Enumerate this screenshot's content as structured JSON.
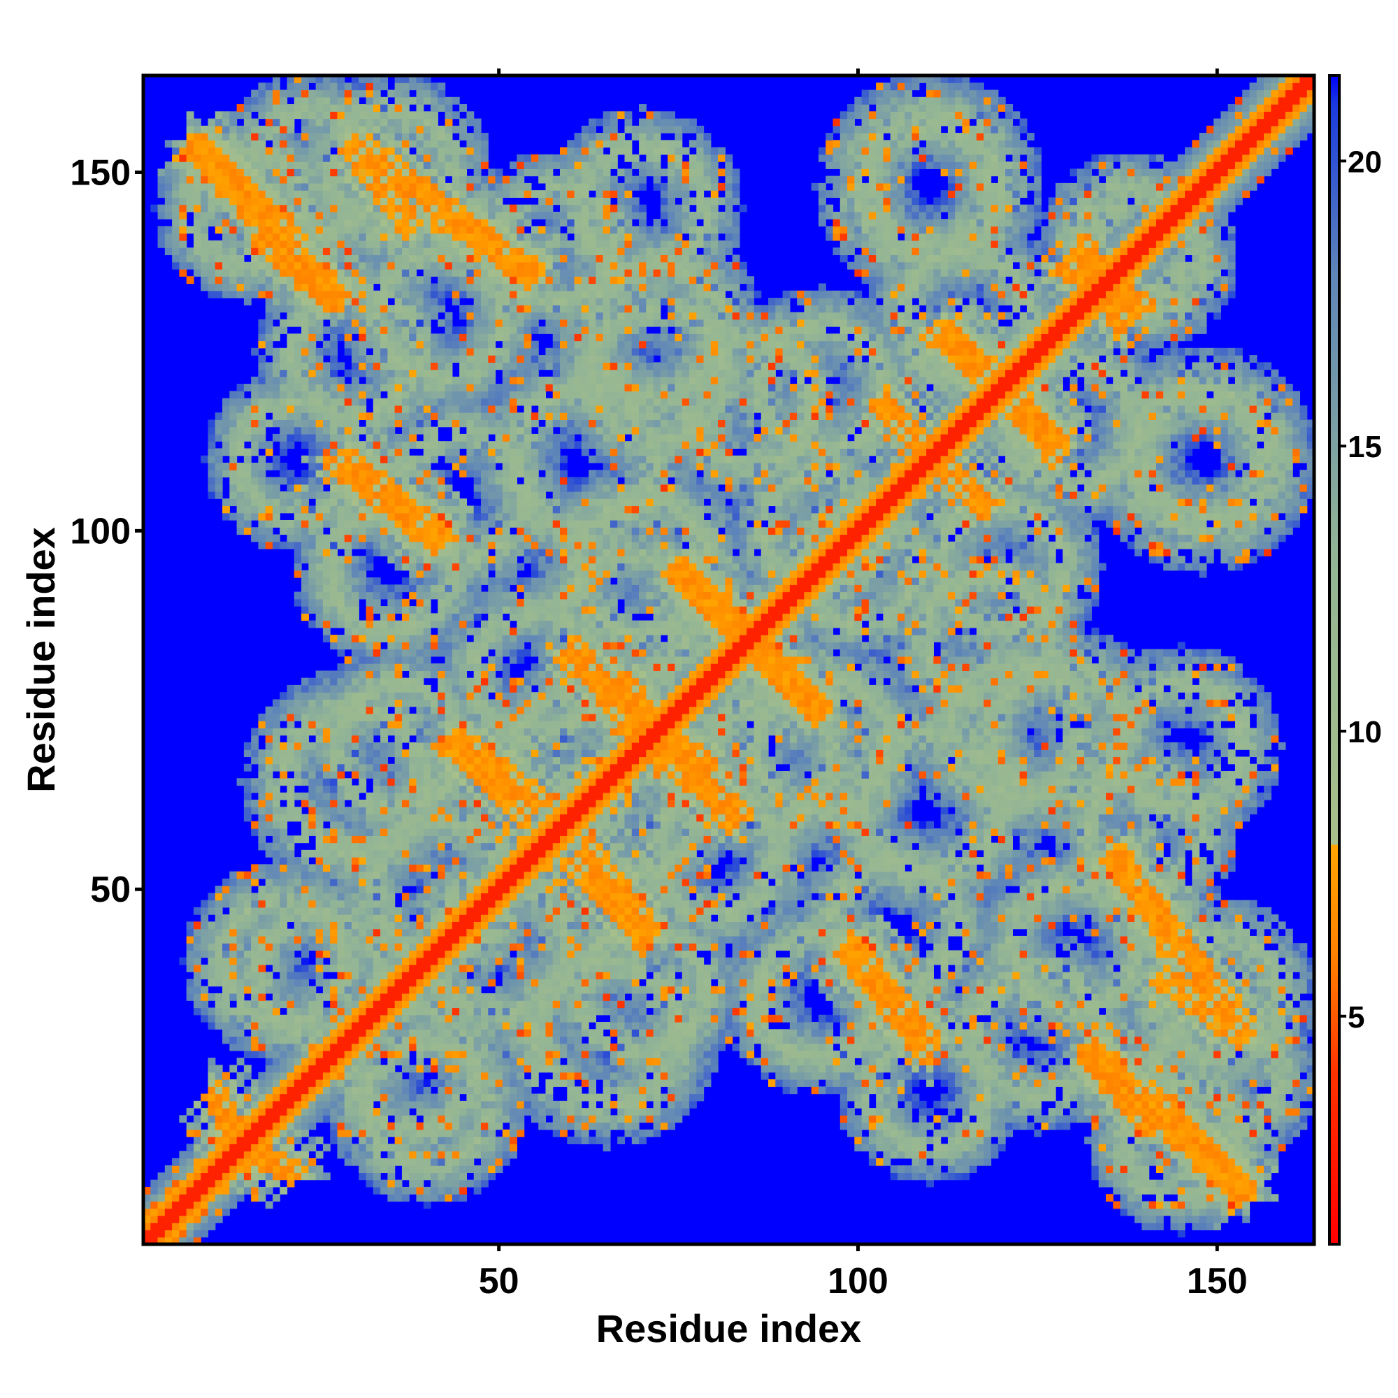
{
  "chart_data": {
    "type": "heatmap",
    "title": "",
    "xlabel": "Residue index",
    "ylabel": "Residue index",
    "xlim": [
      1,
      163
    ],
    "ylim": [
      1,
      163
    ],
    "x_ticks": [
      50,
      100,
      150
    ],
    "y_ticks": [
      50,
      100,
      150
    ],
    "x_tick_labels": [
      "50",
      "100",
      "150"
    ],
    "y_tick_labels": [
      "50",
      "100",
      "150"
    ],
    "colorbar": {
      "range": [
        1,
        21.5
      ],
      "ticks": [
        5,
        10,
        15,
        20
      ],
      "tick_labels": [
        "5",
        "10",
        "15",
        "20"
      ],
      "stops": [
        {
          "value": 1,
          "color": "#ff0000"
        },
        {
          "value": 4,
          "color": "#ff3300"
        },
        {
          "value": 6,
          "color": "#ff8000"
        },
        {
          "value": 8,
          "color": "#ffa500"
        },
        {
          "value": 8.01,
          "color": "#a8c08a"
        },
        {
          "value": 13,
          "color": "#93b595"
        },
        {
          "value": 18,
          "color": "#5f86b8"
        },
        {
          "value": 21,
          "color": "#1a3adf"
        },
        {
          "value": 21.5,
          "color": "#0000ff"
        }
      ]
    },
    "features": {
      "diagonal": {
        "from": 1,
        "to": 163,
        "value": 3
      },
      "bands": [
        {
          "x1": 8,
          "y1": 154,
          "x2": 22,
          "y2": 140,
          "value": 6
        },
        {
          "x1": 17,
          "y1": 141,
          "x2": 27,
          "y2": 132,
          "value": 6
        },
        {
          "x1": 31,
          "y1": 154,
          "x2": 55,
          "y2": 135,
          "value": 6
        },
        {
          "x1": 27,
          "y1": 110,
          "x2": 42,
          "y2": 98,
          "value": 6
        },
        {
          "x1": 44,
          "y1": 71,
          "x2": 56,
          "y2": 62,
          "value": 6
        },
        {
          "x1": 59,
          "y1": 83,
          "x2": 79,
          "y2": 67,
          "value": 6
        },
        {
          "x1": 75,
          "y1": 95,
          "x2": 95,
          "y2": 74,
          "value": 6
        },
        {
          "x1": 71,
          "y1": 70,
          "x2": 84,
          "y2": 60,
          "value": 6
        },
        {
          "x1": 60,
          "y1": 54,
          "x2": 71,
          "y2": 43,
          "value": 6
        },
        {
          "x1": 99,
          "y1": 42,
          "x2": 110,
          "y2": 29,
          "value": 6
        },
        {
          "x1": 103,
          "y1": 118,
          "x2": 118,
          "y2": 103,
          "value": 6
        },
        {
          "x1": 110,
          "y1": 128,
          "x2": 119,
          "y2": 122,
          "value": 6
        },
        {
          "x1": 122,
          "y1": 117,
          "x2": 128,
          "y2": 112,
          "value": 6
        },
        {
          "x1": 128,
          "y1": 137,
          "x2": 140,
          "y2": 131,
          "value": 6
        },
        {
          "x1": 136,
          "y1": 55,
          "x2": 144,
          "y2": 42,
          "value": 6
        },
        {
          "x1": 142,
          "y1": 38,
          "x2": 154,
          "y2": 29,
          "value": 6
        },
        {
          "x1": 132,
          "y1": 28,
          "x2": 154,
          "y2": 7,
          "value": 6
        },
        {
          "x1": 12,
          "y1": 16,
          "x2": 22,
          "y2": 10,
          "value": 6
        }
      ],
      "halos": [
        {
          "x": 24,
          "y": 150,
          "r": 14
        },
        {
          "x": 30,
          "y": 125,
          "r": 14
        },
        {
          "x": 58,
          "y": 140,
          "r": 13
        },
        {
          "x": 72,
          "y": 128,
          "r": 15
        },
        {
          "x": 62,
          "y": 110,
          "r": 16
        },
        {
          "x": 35,
          "y": 95,
          "r": 14
        },
        {
          "x": 68,
          "y": 88,
          "r": 14
        },
        {
          "x": 85,
          "y": 118,
          "r": 14
        },
        {
          "x": 110,
          "y": 148,
          "r": 13
        },
        {
          "x": 115,
          "y": 130,
          "r": 14
        },
        {
          "x": 140,
          "y": 138,
          "r": 13
        },
        {
          "x": 148,
          "y": 110,
          "r": 16
        },
        {
          "x": 120,
          "y": 95,
          "r": 14
        },
        {
          "x": 95,
          "y": 70,
          "r": 15
        },
        {
          "x": 122,
          "y": 72,
          "r": 15
        },
        {
          "x": 145,
          "y": 70,
          "r": 14
        },
        {
          "x": 60,
          "y": 68,
          "r": 14
        },
        {
          "x": 30,
          "y": 65,
          "r": 16
        },
        {
          "x": 50,
          "y": 42,
          "r": 15
        },
        {
          "x": 25,
          "y": 38,
          "r": 14
        },
        {
          "x": 70,
          "y": 36,
          "r": 14
        },
        {
          "x": 105,
          "y": 45,
          "r": 14
        },
        {
          "x": 130,
          "y": 42,
          "r": 14
        },
        {
          "x": 150,
          "y": 35,
          "r": 14
        },
        {
          "x": 110,
          "y": 22,
          "r": 13
        },
        {
          "x": 145,
          "y": 15,
          "r": 13
        },
        {
          "x": 40,
          "y": 20,
          "r": 14
        },
        {
          "x": 80,
          "y": 55,
          "r": 14
        },
        {
          "x": 95,
          "y": 100,
          "r": 13
        }
      ]
    }
  }
}
